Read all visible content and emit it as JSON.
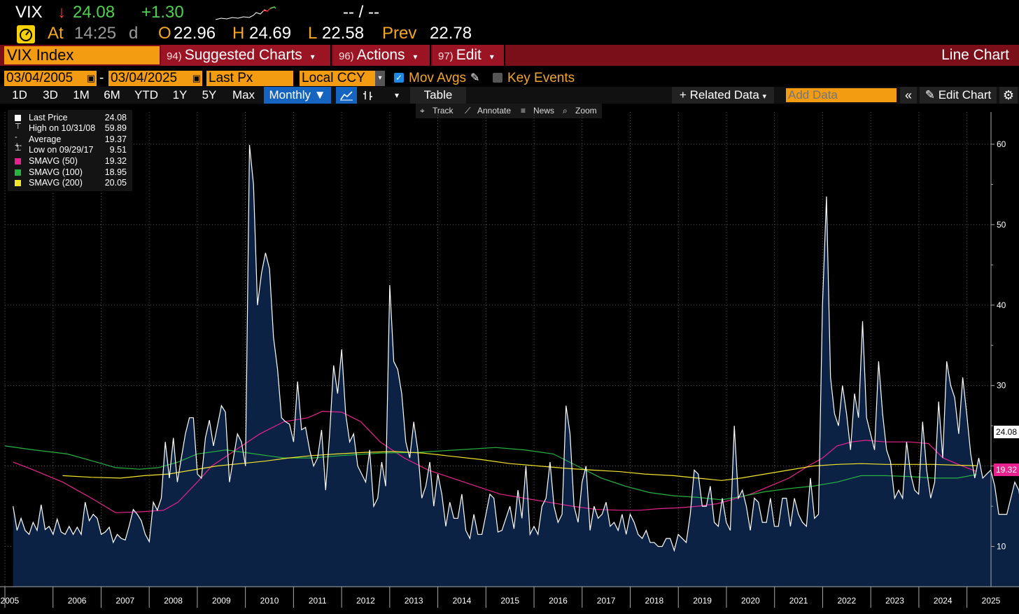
{
  "quote": {
    "ticker": "VIX",
    "arrow": "↓",
    "last": "24.08",
    "change": "+1.30",
    "bidask": "-- / --",
    "at_label": "At",
    "time": "14:25",
    "time_suffix": "d",
    "open_label": "O",
    "open": "22.96",
    "high_label": "H",
    "high": "24.69",
    "low_label": "L",
    "low": "22.58",
    "prev_label": "Prev",
    "prev": "22.78"
  },
  "menu": {
    "security": "VIX Index",
    "items": [
      {
        "num": "94)",
        "label": "Suggested Charts"
      },
      {
        "num": "96)",
        "label": "Actions"
      },
      {
        "num": "97)",
        "label": "Edit"
      }
    ],
    "chart_kind": "Line Chart"
  },
  "controls": {
    "start_date": "03/04/2005",
    "dash": "-",
    "end_date": "03/04/2025",
    "field": "Last Px",
    "currency": "Local CCY",
    "mov_avgs": "Mov Avgs",
    "key_events": "Key Events"
  },
  "toolbar": {
    "periods": [
      "1D",
      "3D",
      "1M",
      "6M",
      "YTD",
      "1Y",
      "5Y",
      "Max"
    ],
    "frequency": "Monthly",
    "table": "Table",
    "related": "+ Related Data",
    "add_data_placeholder": "Add Data",
    "edit_chart": "Edit Chart"
  },
  "subtools": {
    "track": "Track",
    "annotate": "Annotate",
    "news": "News",
    "zoom": "Zoom"
  },
  "legend": [
    {
      "name": "Last Price",
      "value": "24.08",
      "color": "#ffffff"
    },
    {
      "name": "High on 10/31/08",
      "value": "59.89",
      "color": "#ffffff"
    },
    {
      "name": "Average",
      "value": "19.37",
      "color": "#ffffff"
    },
    {
      "name": "Low on 09/29/17",
      "value": "9.51",
      "color": "#ffffff"
    },
    {
      "name": "SMAVG (50)",
      "value": "19.32",
      "color": "#e8238f"
    },
    {
      "name": "SMAVG (100)",
      "value": "18.95",
      "color": "#27b342"
    },
    {
      "name": "SMAVG (200)",
      "value": "20.05",
      "color": "#f4e52a"
    }
  ],
  "chart_data": {
    "type": "area",
    "x_start": 2005.17,
    "x_step": 0.0833,
    "yticks": [
      10,
      20,
      30,
      40,
      50,
      60
    ],
    "ytick_labels": [
      "10",
      "",
      "30",
      "40",
      "50",
      "60"
    ],
    "ylim": [
      5,
      64
    ],
    "xlim": [
      2005.0,
      2025.5
    ],
    "xtick_labels": [
      "2005",
      "2006",
      "2007",
      "2008",
      "2009",
      "2010",
      "2011",
      "2012",
      "2013",
      "2014",
      "2015",
      "2016",
      "2017",
      "2018",
      "2019",
      "2020",
      "2021",
      "2022",
      "2023",
      "2024",
      "2025"
    ],
    "last_tag": "24.08",
    "sma50_tag": "19.32",
    "series": [
      {
        "name": "Last Price",
        "color": "#ffffff",
        "values": [
          15,
          12,
          13.5,
          12,
          11.5,
          13,
          12,
          15.2,
          12.1,
          12.5,
          11.5,
          13.4,
          11.8,
          11.5,
          12.5,
          11.5,
          12.4,
          11.5,
          15.5,
          13.2,
          14,
          13.5,
          11.5,
          11.8,
          12.4,
          10.5,
          11.5,
          11,
          10.8,
          12.6,
          14.6,
          14,
          13.2,
          11.5,
          10.6,
          15.5,
          14.5,
          16,
          23,
          18.5,
          23.5,
          18,
          21,
          24,
          26,
          26,
          19,
          18.5,
          23.5,
          25.7,
          22.5,
          25,
          27.5,
          26.7,
          18,
          21,
          24,
          23,
          20,
          59.9,
          55,
          40,
          44,
          46.5,
          44.5,
          36,
          32,
          26,
          25.5,
          25.2,
          23,
          30.5,
          24.5,
          24.8,
          22,
          20,
          21,
          24.5,
          17,
          24,
          32.5,
          29,
          34.5,
          26.5,
          23,
          24,
          20,
          19,
          18,
          22,
          15,
          16,
          20.5,
          17.5,
          42.5,
          33,
          32,
          29,
          23,
          21,
          25.5,
          22,
          16,
          17.5,
          20.5,
          15,
          19,
          16.5,
          12.5,
          15.5,
          13.5,
          13.5,
          16.5,
          12,
          11,
          14,
          11.5,
          11.5,
          14,
          16.5,
          16,
          11.8,
          12,
          13.5,
          15,
          12.2,
          17,
          13.5,
          20,
          11.5,
          12.5,
          11.5,
          15,
          16,
          20.5,
          15,
          13,
          14,
          27.5,
          24,
          15,
          13,
          18,
          20,
          12,
          15,
          13.5,
          14,
          15.5,
          12.5,
          13,
          12,
          14,
          11.5,
          14,
          13,
          11.5,
          11,
          12,
          10.5,
          10.5,
          10,
          10,
          11,
          11,
          9.5,
          11.5,
          11,
          10.5,
          14,
          19.5,
          19,
          15,
          15,
          17.5,
          13,
          12.5,
          16,
          13,
          12,
          25,
          16,
          17,
          15,
          12,
          16,
          15.5,
          13,
          13,
          16,
          12.5,
          12.5,
          16,
          16,
          12.5,
          16,
          14,
          13,
          12.5,
          18.5,
          13.5,
          14,
          40,
          53.5,
          31,
          26.5,
          25,
          30,
          26.5,
          22,
          29,
          26,
          38,
          26,
          24,
          22,
          33,
          26.5,
          22,
          20.5,
          16,
          17,
          16,
          23,
          19,
          17,
          16.5,
          25.5,
          19.5,
          16,
          18,
          28,
          21,
          33,
          30,
          28.5,
          24,
          31,
          26.5,
          21.5,
          18.5,
          21,
          18.5,
          19,
          19.5,
          17.5,
          14,
          14,
          14,
          16,
          18,
          17,
          13.5,
          17,
          12.5,
          13,
          12.5,
          16,
          13,
          13.5,
          16,
          12.5,
          13.5,
          14,
          16.5,
          13.5,
          17,
          22.5,
          16,
          15,
          24,
          14,
          14,
          17,
          16.5,
          18.5,
          24.08
        ]
      },
      {
        "name": "SMAVG (50)",
        "color": "#e8238f",
        "x_start": 2005.17,
        "points": [
          [
            2005.17,
            20.5
          ],
          [
            2005.6,
            19.5
          ],
          [
            2006.2,
            18
          ],
          [
            2006.8,
            16
          ],
          [
            2007.3,
            14.2
          ],
          [
            2007.8,
            14.3
          ],
          [
            2008.3,
            14.5
          ],
          [
            2008.6,
            15.5
          ],
          [
            2009.0,
            18
          ],
          [
            2009.3,
            20
          ],
          [
            2009.8,
            22
          ],
          [
            2010.3,
            24
          ],
          [
            2010.8,
            25.5
          ],
          [
            2011.3,
            26
          ],
          [
            2011.6,
            26.8
          ],
          [
            2012.0,
            26.7
          ],
          [
            2012.4,
            25.5
          ],
          [
            2012.8,
            23
          ],
          [
            2013.3,
            21
          ],
          [
            2013.8,
            19.5
          ],
          [
            2014.3,
            18.5
          ],
          [
            2014.8,
            17.5
          ],
          [
            2015.3,
            16.5
          ],
          [
            2015.8,
            16
          ],
          [
            2016.3,
            15.5
          ],
          [
            2016.8,
            15
          ],
          [
            2017.3,
            14.6
          ],
          [
            2017.8,
            14.5
          ],
          [
            2018.2,
            14.5
          ],
          [
            2018.6,
            14.7
          ],
          [
            2019.0,
            14.8
          ],
          [
            2019.4,
            15
          ],
          [
            2019.8,
            15.3
          ],
          [
            2020.1,
            15.8
          ],
          [
            2020.5,
            16.5
          ],
          [
            2020.9,
            17.5
          ],
          [
            2021.3,
            18.5
          ],
          [
            2021.7,
            20
          ],
          [
            2022.0,
            21
          ],
          [
            2022.3,
            22.5
          ],
          [
            2022.6,
            23
          ],
          [
            2022.9,
            23.2
          ],
          [
            2023.3,
            23
          ],
          [
            2023.8,
            23
          ],
          [
            2024.2,
            22.8
          ],
          [
            2024.5,
            21
          ],
          [
            2024.9,
            20
          ],
          [
            2025.2,
            19.32
          ]
        ]
      },
      {
        "name": "SMAVG (100)",
        "color": "#27b342",
        "points": [
          [
            2005.0,
            22.5
          ],
          [
            2005.6,
            22
          ],
          [
            2006.3,
            21.5
          ],
          [
            2006.9,
            20.5
          ],
          [
            2007.3,
            19.8
          ],
          [
            2007.8,
            19.6
          ],
          [
            2008.2,
            19.8
          ],
          [
            2008.6,
            20.5
          ],
          [
            2009.0,
            21.5
          ],
          [
            2009.6,
            22
          ],
          [
            2010.2,
            21.5
          ],
          [
            2010.8,
            21
          ],
          [
            2011.4,
            21
          ],
          [
            2012.0,
            21.3
          ],
          [
            2012.8,
            21.6
          ],
          [
            2013.6,
            21.7
          ],
          [
            2014.4,
            22
          ],
          [
            2015.2,
            22.3
          ],
          [
            2015.8,
            22
          ],
          [
            2016.4,
            21.5
          ],
          [
            2016.9,
            20
          ],
          [
            2017.4,
            18.5
          ],
          [
            2017.9,
            17.5
          ],
          [
            2018.4,
            16.7
          ],
          [
            2018.9,
            16.3
          ],
          [
            2019.4,
            16.1
          ],
          [
            2019.9,
            15.8
          ],
          [
            2020.3,
            16.2
          ],
          [
            2020.8,
            16.8
          ],
          [
            2021.3,
            17.2
          ],
          [
            2021.8,
            17.5
          ],
          [
            2022.3,
            18
          ],
          [
            2022.8,
            18.8
          ],
          [
            2023.3,
            18.8
          ],
          [
            2023.8,
            18.7
          ],
          [
            2024.3,
            18.5
          ],
          [
            2024.8,
            18.5
          ],
          [
            2025.2,
            18.95
          ]
        ]
      },
      {
        "name": "SMAVG (200)",
        "color": "#f4e52a",
        "points": [
          [
            2006.2,
            18.8
          ],
          [
            2006.8,
            18.6
          ],
          [
            2007.4,
            18.5
          ],
          [
            2007.9,
            18.8
          ],
          [
            2008.4,
            19
          ],
          [
            2008.9,
            19.5
          ],
          [
            2009.4,
            20
          ],
          [
            2009.9,
            20.3
          ],
          [
            2010.4,
            20.6
          ],
          [
            2010.9,
            21
          ],
          [
            2011.4,
            21.3
          ],
          [
            2011.9,
            21.5
          ],
          [
            2012.5,
            21.7
          ],
          [
            2013.1,
            21.8
          ],
          [
            2013.7,
            21.6
          ],
          [
            2014.3,
            21.2
          ],
          [
            2014.9,
            20.8
          ],
          [
            2015.5,
            20.3
          ],
          [
            2016.1,
            20
          ],
          [
            2016.7,
            19.7
          ],
          [
            2017.2,
            19.5
          ],
          [
            2017.8,
            19.3
          ],
          [
            2018.3,
            19
          ],
          [
            2018.9,
            18.8
          ],
          [
            2019.4,
            18.5
          ],
          [
            2019.9,
            18.2
          ],
          [
            2020.3,
            18.5
          ],
          [
            2020.8,
            19
          ],
          [
            2021.3,
            19.5
          ],
          [
            2021.8,
            20
          ],
          [
            2022.3,
            20.2
          ],
          [
            2022.8,
            20.3
          ],
          [
            2023.3,
            20.2
          ],
          [
            2023.8,
            20.2
          ],
          [
            2024.3,
            20.2
          ],
          [
            2024.8,
            20.1
          ],
          [
            2025.2,
            20.05
          ]
        ]
      }
    ]
  }
}
